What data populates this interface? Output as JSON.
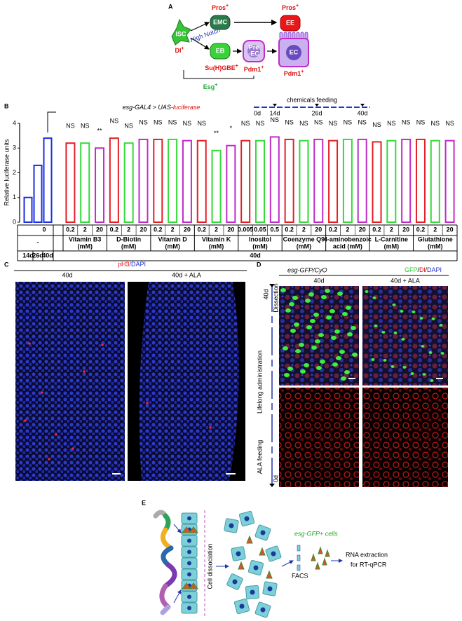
{
  "panel_a": {
    "letter": "A",
    "isc": "ISC",
    "dl": {
      "text": "Dl",
      "sup": "+"
    },
    "high_notch": "High Notch",
    "emc": "EMC",
    "emc_marker": {
      "text": "Pros",
      "sup": "+"
    },
    "ee": "EE",
    "ee_marker": {
      "text": "Pros",
      "sup": "+"
    },
    "eb": "EB",
    "eb_marker": {
      "text": "Su(H)GBE",
      "sup": "+"
    },
    "pre_ec": [
      "Pre",
      "-EC"
    ],
    "pre_ec_marker": {
      "text": "Pdm1",
      "sup": "+"
    },
    "ec": "EC",
    "ec_marker": {
      "text": "Pdm1",
      "sup": "+"
    },
    "esg_marker": {
      "text": "Esg",
      "sup": "+"
    }
  },
  "panel_b_letter": "B",
  "chart_data": {
    "type": "bar",
    "title": "esg-GAL4 > UAS-",
    "title_highlight": "luciferase",
    "y_label": "Relative luciferase units",
    "ylim": [
      0,
      4
    ],
    "yticks": [
      0,
      1,
      2,
      3,
      4
    ],
    "timeline": {
      "label": "chemicals feeding",
      "ticks": [
        "0d",
        "14d",
        "26d",
        "40d"
      ]
    },
    "control": {
      "label": "-",
      "dose": "0",
      "days": [
        "14d",
        "26d",
        "40d"
      ],
      "values": [
        1.0,
        2.3,
        3.4
      ],
      "color": "#1a2fe0"
    },
    "treatment_day": "40d",
    "colors": [
      "#e61e25",
      "#35d93a",
      "#c02bc9"
    ],
    "groups": [
      {
        "name": [
          "Vitamin B3",
          "(mM)"
        ],
        "doses": [
          "0.2",
          "2",
          "20"
        ],
        "values": [
          3.2,
          3.2,
          3.0
        ],
        "signif": [
          "NS",
          "NS",
          "**"
        ]
      },
      {
        "name": [
          "D-Biotin",
          "(mM)"
        ],
        "doses": [
          "0.2",
          "2",
          "20"
        ],
        "values": [
          3.4,
          3.2,
          3.35
        ],
        "signif": [
          "NS",
          "NS",
          "NS"
        ]
      },
      {
        "name": [
          "Vitamin D",
          "(mM)"
        ],
        "doses": [
          "0.2",
          "2",
          "20"
        ],
        "values": [
          3.35,
          3.35,
          3.3
        ],
        "signif": [
          "NS",
          "NS",
          "NS"
        ]
      },
      {
        "name": [
          "Vitamin K",
          "(mM)"
        ],
        "doses": [
          "0.2",
          "2",
          "20"
        ],
        "values": [
          3.3,
          2.9,
          3.1
        ],
        "signif": [
          "NS",
          "**",
          "*"
        ]
      },
      {
        "name": [
          "Inositol",
          "(mM)"
        ],
        "doses": [
          "0.005",
          "0.05",
          "0.5"
        ],
        "values": [
          3.3,
          3.3,
          3.45
        ],
        "signif": [
          "NS",
          "NS",
          "NS"
        ]
      },
      {
        "name": [
          "Coenzyme Q9",
          "(mM)"
        ],
        "doses": [
          "0.2",
          "2",
          "20"
        ],
        "values": [
          3.35,
          3.3,
          3.35
        ],
        "signif": [
          "NS",
          "NS",
          "NS"
        ]
      },
      {
        "name": [
          "4-aminobenzoic",
          "acid (mM)"
        ],
        "doses": [
          "0.2",
          "2",
          "20"
        ],
        "values": [
          3.3,
          3.35,
          3.35
        ],
        "signif": [
          "NS",
          "NS",
          "NS"
        ]
      },
      {
        "name": [
          "L-Carnitine",
          "(mM)"
        ],
        "doses": [
          "0.2",
          "2",
          "20"
        ],
        "values": [
          3.25,
          3.3,
          3.35
        ],
        "signif": [
          "NS",
          "NS",
          "NS"
        ]
      },
      {
        "name": [
          "Glutathione",
          "(mM)"
        ],
        "doses": [
          "0.2",
          "2",
          "20"
        ],
        "values": [
          3.35,
          3.3,
          3.3
        ],
        "signif": [
          "NS",
          "NS",
          "NS"
        ]
      }
    ]
  },
  "panel_c": {
    "letter": "C",
    "stain": "pH3",
    "stain2": "/DAPI",
    "left": "40d",
    "right": "40d + ALA"
  },
  "panel_d": {
    "letter": "D",
    "genotype": "esg-GFP/CyO",
    "gfp": "GFP",
    "sep1": "/",
    "dl": "Dl",
    "sep2": "/",
    "dapi": "DAPI",
    "left": "40d",
    "right": "40d + ALA",
    "dissection": "Dissection",
    "end_day": "40d",
    "lifelong": "Lifelong administration",
    "ala_feeding": "ALA feeding",
    "start_day": "0d"
  },
  "panel_e": {
    "letter": "E",
    "cells": "esg-GFP+ cells",
    "dissociation": "Cell dissociation",
    "facs": "FACS",
    "rna": "RNA extraction",
    "qpcr": "for RT-qPCR"
  }
}
